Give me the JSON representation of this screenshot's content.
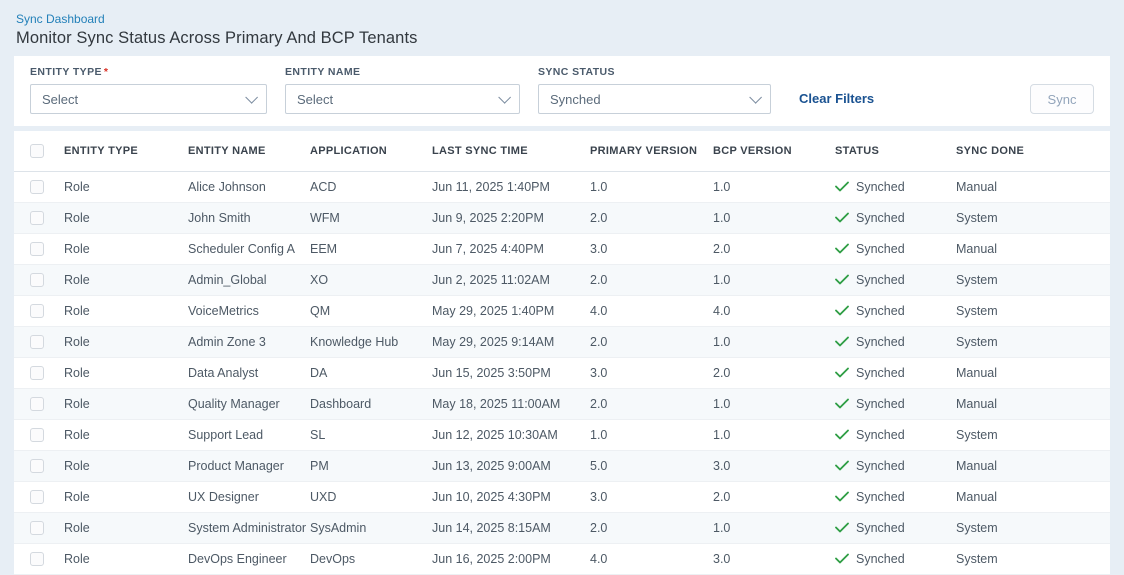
{
  "header": {
    "breadcrumb": "Sync Dashboard",
    "title": "Monitor Sync Status Across Primary And BCP Tenants"
  },
  "filters": {
    "entity_type": {
      "label": "ENTITY TYPE",
      "required_marker": "*",
      "value": "Select"
    },
    "entity_name": {
      "label": "ENTITY NAME",
      "value": "Select"
    },
    "sync_status": {
      "label": "SYNC STATUS",
      "value": "Synched"
    },
    "clear_filters_label": "Clear Filters",
    "sync_button_label": "Sync"
  },
  "colors": {
    "link_blue": "#2380b9",
    "clear_filters_blue": "#1a5291",
    "status_check_green": "#2e9e44",
    "page_background": "#e7eef5",
    "alt_row_background": "#f6f9fb",
    "required_red": "#d93025"
  },
  "icons": {
    "dropdown_chevron": "chevron-down-icon",
    "status_check": "check-icon"
  },
  "table": {
    "columns": [
      "ENTITY TYPE",
      "ENTITY NAME",
      "APPLICATION",
      "LAST SYNC TIME",
      "PRIMARY VERSION",
      "BCP VERSION",
      "STATUS",
      "SYNC DONE"
    ],
    "rows": [
      {
        "entity_type": "Role",
        "entity_name": "Alice Johnson",
        "application": "ACD",
        "last_sync_time": "Jun 11, 2025 1:40PM",
        "primary_version": "1.0",
        "bcp_version": "1.0",
        "status": "Synched",
        "sync_done": "Manual"
      },
      {
        "entity_type": "Role",
        "entity_name": "John Smith",
        "application": "WFM",
        "last_sync_time": "Jun 9, 2025 2:20PM",
        "primary_version": "2.0",
        "bcp_version": "1.0",
        "status": "Synched",
        "sync_done": "System"
      },
      {
        "entity_type": "Role",
        "entity_name": "Scheduler Config A",
        "application": "EEM",
        "last_sync_time": "Jun 7, 2025 4:40PM",
        "primary_version": "3.0",
        "bcp_version": "2.0",
        "status": "Synched",
        "sync_done": "Manual"
      },
      {
        "entity_type": "Role",
        "entity_name": "Admin_Global",
        "application": "XO",
        "last_sync_time": "Jun 2, 2025 11:02AM",
        "primary_version": "2.0",
        "bcp_version": "1.0",
        "status": "Synched",
        "sync_done": "System"
      },
      {
        "entity_type": "Role",
        "entity_name": "VoiceMetrics",
        "application": "QM",
        "last_sync_time": "May 29, 2025 1:40PM",
        "primary_version": "4.0",
        "bcp_version": "4.0",
        "status": "Synched",
        "sync_done": "System"
      },
      {
        "entity_type": "Role",
        "entity_name": "Admin Zone 3",
        "application": "Knowledge Hub",
        "last_sync_time": "May 29, 2025 9:14AM",
        "primary_version": "2.0",
        "bcp_version": "1.0",
        "status": "Synched",
        "sync_done": "System"
      },
      {
        "entity_type": "Role",
        "entity_name": "Data Analyst",
        "application": "DA",
        "last_sync_time": "Jun 15, 2025 3:50PM",
        "primary_version": "3.0",
        "bcp_version": "2.0",
        "status": "Synched",
        "sync_done": "Manual"
      },
      {
        "entity_type": "Role",
        "entity_name": "Quality Manager",
        "application": "Dashboard",
        "last_sync_time": "May 18, 2025 11:00AM",
        "primary_version": "2.0",
        "bcp_version": "1.0",
        "status": "Synched",
        "sync_done": "Manual"
      },
      {
        "entity_type": "Role",
        "entity_name": "Support Lead",
        "application": "SL",
        "last_sync_time": "Jun 12, 2025 10:30AM",
        "primary_version": "1.0",
        "bcp_version": "1.0",
        "status": "Synched",
        "sync_done": "System"
      },
      {
        "entity_type": "Role",
        "entity_name": "Product Manager",
        "application": "PM",
        "last_sync_time": "Jun 13, 2025 9:00AM",
        "primary_version": "5.0",
        "bcp_version": "3.0",
        "status": "Synched",
        "sync_done": "Manual"
      },
      {
        "entity_type": "Role",
        "entity_name": "UX Designer",
        "application": "UXD",
        "last_sync_time": "Jun 10, 2025 4:30PM",
        "primary_version": "3.0",
        "bcp_version": "2.0",
        "status": "Synched",
        "sync_done": "Manual"
      },
      {
        "entity_type": "Role",
        "entity_name": "System Administrator",
        "application": "SysAdmin",
        "last_sync_time": "Jun 14, 2025 8:15AM",
        "primary_version": "2.0",
        "bcp_version": "1.0",
        "status": "Synched",
        "sync_done": "System"
      },
      {
        "entity_type": "Role",
        "entity_name": "DevOps Engineer",
        "application": "DevOps",
        "last_sync_time": "Jun 16, 2025 2:00PM",
        "primary_version": "4.0",
        "bcp_version": "3.0",
        "status": "Synched",
        "sync_done": "System"
      }
    ]
  }
}
